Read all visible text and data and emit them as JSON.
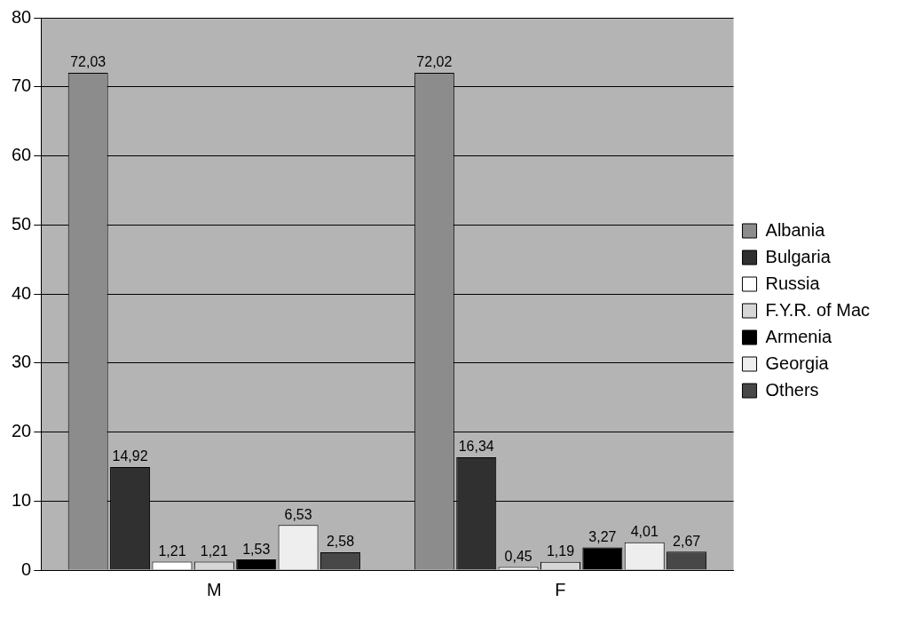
{
  "chart_data": {
    "type": "bar",
    "categories": [
      "M",
      "F"
    ],
    "ylim": [
      0,
      80
    ],
    "yticks": [
      0,
      10,
      20,
      30,
      40,
      50,
      60,
      70,
      80
    ],
    "grid": "y",
    "legend": "right",
    "series": [
      {
        "name": "Albania",
        "color": "#8c8c8c",
        "values": [
          72.03,
          72.02
        ],
        "value_labels": [
          "72,03",
          "72,02"
        ]
      },
      {
        "name": "Bulgaria",
        "color": "#303030",
        "values": [
          14.92,
          16.34
        ],
        "value_labels": [
          "14,92",
          "16,34"
        ]
      },
      {
        "name": "Russia",
        "color": "#ffffff",
        "values": [
          1.21,
          0.45
        ],
        "value_labels": [
          "1,21",
          "0,45"
        ]
      },
      {
        "name": "F.Y.R. of Mac",
        "color": "#d6d6d6",
        "values": [
          1.21,
          1.19
        ],
        "value_labels": [
          "1,21",
          "1,19"
        ]
      },
      {
        "name": "Armenia",
        "color": "#000000",
        "values": [
          1.53,
          3.27
        ],
        "value_labels": [
          "1,53",
          "3,27"
        ]
      },
      {
        "name": "Georgia",
        "color": "#eeeeee",
        "values": [
          6.53,
          4.01
        ],
        "value_labels": [
          "6,53",
          "4,01"
        ]
      },
      {
        "name": "Others",
        "color": "#484848",
        "values": [
          2.58,
          2.67
        ],
        "value_labels": [
          "2,58",
          "2,67"
        ]
      }
    ]
  }
}
